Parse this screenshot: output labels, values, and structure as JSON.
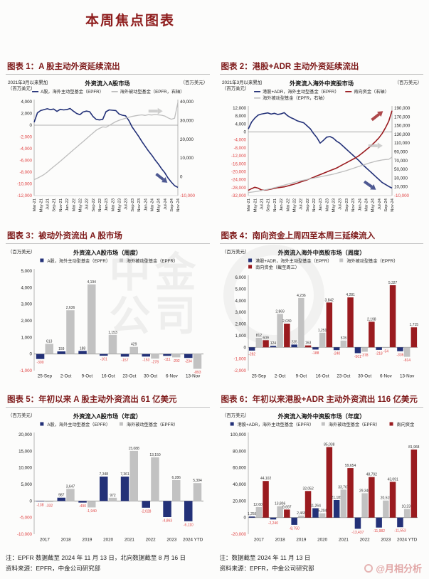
{
  "page": {
    "title": "本周焦点图表",
    "watermark_center": "中金公司",
    "watermark_corner": "@月相分析",
    "footnotes": {
      "left": {
        "note": "注：EPFR 数据截至 2024 年 11 月 13 日，北向数据截至 8 月 16 日",
        "source": "资料来源：EPFR，中金公司研究部"
      },
      "right": {
        "note": "注：数据截至 2024 年 11 月 13 日",
        "source": "资料来源：EPFR，中金公司研究部"
      }
    }
  },
  "colors": {
    "navy": "#233178",
    "gray": "#c2c2c2",
    "line_gray": "#bdbdbd",
    "red": "#9a1b1f",
    "negative": "#e04343",
    "header_red": "#7e1a1a"
  },
  "chart_data": [
    {
      "id": 1,
      "type": "line",
      "header": "图表 1：A 股主动外资延续流出",
      "title": "外资流入A股市场",
      "unit_left": [
        "2021年3月以来累加",
        "（百万美元）"
      ],
      "unit_right": "（百万美元）",
      "legend_rows": [
        [
          {
            "marker": "line",
            "color": "#233178",
            "label": "A股，海外主动型基金（EPFR）"
          },
          {
            "marker": "line",
            "color": "#bdbdbd",
            "label": "海外被动型基金（EPFR，右轴）"
          }
        ]
      ],
      "ylim_left": [
        -12000,
        4000
      ],
      "yticks_left": [
        4000,
        2000,
        0,
        -2000,
        -4000,
        -6000,
        -8000,
        -10000,
        -12000
      ],
      "ylim_right": [
        -10000,
        40000
      ],
      "yticks_right": [
        40000,
        30000,
        20000,
        10000,
        0,
        -10000
      ],
      "x_tick_labels": [
        "Mar-21",
        "May-21",
        "Jul-21",
        "Sep-21",
        "Nov-21",
        "Jan-22",
        "Mar-22",
        "May-22",
        "Jul-22",
        "Sep-22",
        "Nov-22",
        "Jan-23",
        "Mar-23",
        "May-23",
        "Jul-23",
        "Sep-23",
        "Nov-23",
        "Jan-24",
        "Mar-24",
        "May-24",
        "Jul-24",
        "Sep-24",
        "Nov-24"
      ],
      "series": [
        {
          "name": "A股，海外主动型基金（EPFR）",
          "axis": "left",
          "color": "#233178",
          "width": 1.6,
          "values": [
            500,
            2100,
            2500,
            2650,
            2800,
            2650,
            2750,
            2350,
            2700,
            2600,
            2650,
            2850,
            2400,
            2000,
            1800,
            2250,
            2400,
            2300,
            1500,
            1000,
            900,
            1000,
            2300,
            2600,
            2550,
            2500,
            1900,
            1700,
            1600,
            800,
            -300,
            -1100,
            -1900,
            -2800,
            -3600,
            -4400,
            -5100,
            -5900,
            -6600,
            -7400,
            -8100,
            -9000,
            -9700,
            -10300,
            -10600
          ]
        },
        {
          "name": "海外被动型基金（EPFR，右轴）",
          "axis": "right",
          "color": "#bdbdbd",
          "width": 1.3,
          "values": [
            -1500,
            -700,
            200,
            1200,
            2500,
            4000,
            5400,
            6800,
            8300,
            9800,
            11300,
            12800,
            14300,
            15800,
            17300,
            18800,
            20300,
            21800,
            23300,
            24800,
            25800,
            26600,
            26400,
            27400,
            28400,
            29400,
            30100,
            30700,
            31200,
            31700,
            32200,
            32500,
            32800,
            33000,
            32700,
            33100,
            32900,
            33200,
            33000,
            32800,
            32400,
            31400,
            30700,
            31200,
            39500
          ]
        }
      ],
      "annotations": [
        {
          "color": "#c4c4c4",
          "x": 0.86,
          "y": 0.1,
          "angle": 0
        },
        {
          "color": "#233178",
          "x": 0.9,
          "y": 0.83,
          "angle": 38
        }
      ]
    },
    {
      "id": 2,
      "type": "line",
      "header": "图表 2：港股+ADR 主动外资延续流出",
      "title": "外资流入海外中资股市场",
      "unit_left": [
        "2021年3月以来累加",
        "（百万美元）"
      ],
      "unit_right": "（百万美元）",
      "legend_rows": [
        [
          {
            "marker": "line",
            "color": "#233178",
            "label": "港股+ADR，海外主动型基金（EPFR）"
          },
          {
            "marker": "line",
            "color": "#9a1b1f",
            "label": "南向资金（右轴）"
          }
        ],
        [
          {
            "marker": "line",
            "color": "#bdbdbd",
            "label": "海外被动型基金（EPFR，右轴）"
          }
        ]
      ],
      "ylim_left": [
        -32000,
        12000
      ],
      "yticks_left": [
        12000,
        8000,
        4000,
        0,
        -4000,
        -8000,
        -12000,
        -16000,
        -20000,
        -24000,
        -28000,
        -32000
      ],
      "ylim_right": [
        -10000,
        190000
      ],
      "yticks_right": [
        190000,
        170000,
        150000,
        130000,
        110000,
        90000,
        70000,
        50000,
        30000,
        10000,
        -10000
      ],
      "x_tick_labels": [
        "Mar-21",
        "May-21",
        "Jul-21",
        "Sep-21",
        "Nov-21",
        "Jan-22",
        "Mar-22",
        "May-22",
        "Jul-22",
        "Sep-22",
        "Nov-22",
        "Jan-23",
        "Mar-23",
        "May-23",
        "Jul-23",
        "Sep-23",
        "Nov-23",
        "Jan-24",
        "Mar-24",
        "May-24",
        "Jul-24",
        "Sep-24",
        "Nov-24"
      ],
      "series": [
        {
          "name": "港股+ADR，海外主动型基金（EPFR）",
          "axis": "left",
          "color": "#233178",
          "width": 1.6,
          "values": [
            1500,
            5000,
            7000,
            8500,
            9000,
            9300,
            9600,
            9000,
            9400,
            8800,
            9100,
            9700,
            8200,
            7200,
            6500,
            5600,
            5100,
            4600,
            3100,
            1600,
            -800,
            -2800,
            -5600,
            -4200,
            -2600,
            -2300,
            -3100,
            -4600,
            -5600,
            -7100,
            -8600,
            -10100,
            -11600,
            -13100,
            -14600,
            -16400,
            -17900,
            -19400,
            -20900,
            -22400,
            -23900,
            -25400,
            -26400,
            -27400,
            -28200
          ]
        },
        {
          "name": "南向资金（右轴）",
          "axis": "right",
          "color": "#9a1b1f",
          "width": 1.6,
          "values": [
            2000,
            6000,
            9000,
            7000,
            3000,
            2500,
            3500,
            5000,
            6500,
            8000,
            9000,
            10000,
            12000,
            14000,
            16000,
            18500,
            21000,
            23500,
            26000,
            29000,
            32000,
            35000,
            38000,
            41000,
            44000,
            47000,
            50000,
            53000,
            57000,
            61000,
            65000,
            69000,
            73000,
            77000,
            82000,
            88000,
            94000,
            100000,
            107000,
            114000,
            122000,
            132000,
            145000,
            160000,
            184000
          ]
        },
        {
          "name": "海外被动型基金（EPFR，右轴）",
          "axis": "right",
          "color": "#bdbdbd",
          "width": 1.3,
          "values": [
            -3000,
            -2000,
            -1000,
            0,
            1500,
            3000,
            4500,
            6000,
            8000,
            10000,
            12000,
            14000,
            16000,
            18000,
            20000,
            22000,
            24000,
            25500,
            27000,
            28500,
            30000,
            31500,
            33000,
            34500,
            36000,
            37500,
            39000,
            41000,
            43000,
            45000,
            47000,
            49500,
            52000,
            54500,
            57000,
            59500,
            62000,
            64500,
            66500,
            68500,
            70000,
            71500,
            72500,
            73000,
            78000
          ]
        }
      ],
      "annotations": [
        {
          "color": "#9a1b1f",
          "x": 0.91,
          "y": 0.07,
          "angle": -38
        },
        {
          "color": "#c4c4c4",
          "x": 0.9,
          "y": 0.43,
          "angle": 0
        },
        {
          "color": "#233178",
          "x": 0.86,
          "y": 0.9,
          "angle": 35
        }
      ]
    },
    {
      "id": 3,
      "type": "bar",
      "header": "图表 3：被动外资流出 A 股市场",
      "title": "外资流入A股市场（周度）",
      "unit_left": [
        "（百万美元）"
      ],
      "legend_rows": [
        [
          {
            "marker": "square",
            "color": "#233178",
            "label": "A股，海外主动型基金（EPFR）"
          },
          {
            "marker": "square",
            "color": "#c2c2c2",
            "label": "海外被动型基金（EPFR）"
          }
        ]
      ],
      "ylim_left": [
        -1000,
        5000
      ],
      "yticks_left": [
        5000,
        4000,
        3000,
        2000,
        1000,
        0,
        -1000
      ],
      "categories": [
        "25-Sep",
        "2-Oct",
        "9-Oct",
        "16-Oct",
        "23-Oct",
        "30-Oct",
        "6-Nov",
        "13-Nov"
      ],
      "series": [
        {
          "name": "A股，海外主动型基金（EPFR）",
          "color": "#233178",
          "values": [
            -300,
            159,
            188,
            -101,
            -157,
            -153,
            -111,
            -234
          ]
        },
        {
          "name": "海外被动型基金（EPFR）",
          "color": "#c2c2c2",
          "values": [
            613,
            2636,
            4194,
            1153,
            429,
            -278,
            -202,
            -893
          ]
        }
      ]
    },
    {
      "id": 4,
      "type": "bar",
      "header": "图表 4：南向资金上周四至本周三延续流入",
      "title": "外资流入海外中资股市场（周度）",
      "unit_left": [
        "（百万美元）"
      ],
      "legend_rows": [
        [
          {
            "marker": "square",
            "color": "#233178",
            "label": "港股+ADR，海外主动型基金（EPFR）"
          },
          {
            "marker": "square",
            "color": "#c2c2c2",
            "label": "海外被动型基金（EPFR）"
          }
        ],
        [
          {
            "marker": "square",
            "color": "#9a1b1f",
            "label": "南向资金（截至周三）"
          }
        ]
      ],
      "ylim_left": [
        -2000,
        6000
      ],
      "yticks_left": [
        6000,
        5000,
        4000,
        3000,
        2000,
        1000,
        0,
        -1000,
        -2000
      ],
      "categories": [
        "25-Sep",
        "2-Oct",
        "9-Oct",
        "16-Oct",
        "23-Oct",
        "30-Oct",
        "6-Nov",
        "13-Nov"
      ],
      "series": [
        {
          "name": "港股+ADR，海外主动型基金（EPFR）",
          "color": "#233178",
          "values": [
            -282,
            124,
            235,
            -188,
            -240,
            -501,
            -218,
            -336
          ]
        },
        {
          "name": "海外被动型基金（EPFR）",
          "color": "#c2c2c2",
          "values": [
            812,
            2869,
            4236,
            1251,
            578,
            -378,
            -54,
            -814
          ]
        },
        {
          "name": "南向资金（截至周三）",
          "color": "#9a1b1f",
          "values": [
            609,
            2030,
            163,
            3842,
            4281,
            2198,
            5327,
            1715
          ]
        }
      ]
    },
    {
      "id": 5,
      "type": "bar",
      "header": "图表 5：年初以来 A 股主动外资流出 61 亿美元",
      "title": "外资流入A股市场（年度）",
      "unit_left": [
        "（百万美元）"
      ],
      "legend_rows": [
        [
          {
            "marker": "square",
            "color": "#233178",
            "label": "A股，海外主动型基金（EPFR）"
          },
          {
            "marker": "square",
            "color": "#c2c2c2",
            "label": "海外被动型基金（EPFR）"
          }
        ]
      ],
      "ylim_left": [
        -10000,
        20000
      ],
      "yticks_left": [
        20000,
        15000,
        10000,
        5000,
        0,
        -5000,
        -10000
      ],
      "categories": [
        "2017",
        "2018",
        "2019",
        "2020",
        "2021",
        "2022",
        "2023",
        "2024 YTD"
      ],
      "series": [
        {
          "name": "A股，海外主动型基金（EPFR）",
          "color": "#233178",
          "values": [
            -138,
            987,
            -490,
            7348,
            7361,
            -2028,
            -4863,
            -6110
          ]
        },
        {
          "name": "海外被动型基金（EPFR）",
          "color": "#c2c2c2",
          "values": [
            -332,
            3647,
            -1940,
            972,
            15088,
            13150,
            6286,
            5394
          ]
        }
      ]
    },
    {
      "id": 6,
      "type": "bar",
      "header": "图表 6：年初以来港股+ADR 主动外资流出 116 亿美元",
      "title": "外资流入海外中资股市场（年度）",
      "unit_left": [
        "（百万美元）"
      ],
      "legend_rows": [
        [
          {
            "marker": "square",
            "color": "#233178",
            "label": "港股+ADR，海外主动型基金（EPFR）"
          },
          {
            "marker": "square",
            "color": "#c2c2c2",
            "label": "海外被动型基金（EPFR）"
          },
          {
            "marker": "square",
            "color": "#9a1b1f",
            "label": "南向资金"
          }
        ]
      ],
      "ylim_left": [
        -20000,
        100000
      ],
      "yticks_left": [
        100000,
        80000,
        60000,
        40000,
        20000,
        0,
        -20000
      ],
      "categories": [
        "2017",
        "2018",
        "2019",
        "2020",
        "2021",
        "2022",
        "2023",
        "2024 YTD"
      ],
      "series": [
        {
          "name": "港股+ADR，海外主动型基金（EPFR）",
          "color": "#233178",
          "values": [
            1258,
            -2240,
            -8750,
            11264,
            21185,
            -13437,
            -11982,
            -11553
          ]
        },
        {
          "name": "海外被动型基金（EPFR）",
          "color": "#c2c2c2",
          "values": [
            12607,
            13806,
            2466,
            5204,
            33767,
            29340,
            20519,
            10233
          ]
        },
        {
          "name": "南向资金",
          "color": "#9a1b1f",
          "values": [
            44102,
            9697,
            32052,
            85038,
            59654,
            48792,
            43091,
            81968
          ]
        }
      ]
    }
  ]
}
